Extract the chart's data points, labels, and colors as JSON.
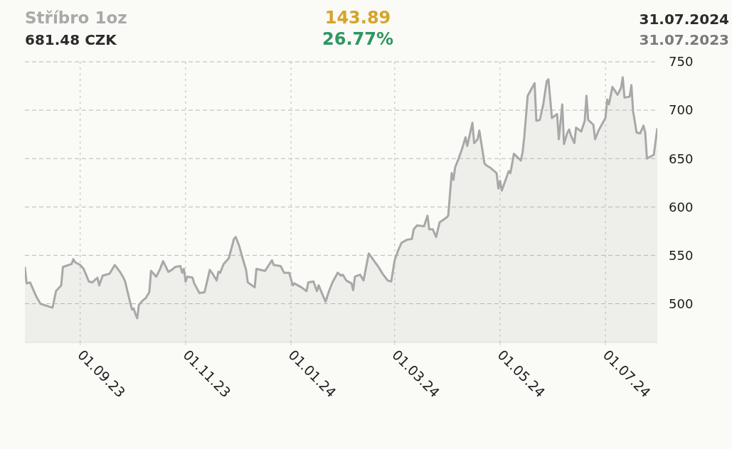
{
  "chart_data": {
    "type": "area",
    "title": "Stříbro 1oz",
    "subtitle": "681.48 CZK",
    "annotations": [
      "143.89",
      "26.77%",
      "31.07.2024",
      "31.07.2023"
    ],
    "x": [
      "2023-07-31",
      "2023-08-01",
      "2023-08-03",
      "2023-08-07",
      "2023-08-09",
      "2023-08-14",
      "2023-08-16",
      "2023-08-18",
      "2023-08-21",
      "2023-08-22",
      "2023-08-27",
      "2023-08-28",
      "2023-08-29",
      "2023-09-01",
      "2023-09-03",
      "2023-09-06",
      "2023-09-08",
      "2023-09-11",
      "2023-09-12",
      "2023-09-14",
      "2023-09-18",
      "2023-09-21",
      "2023-09-24",
      "2023-09-26",
      "2023-09-27",
      "2023-09-29",
      "2023-10-01",
      "2023-10-02",
      "2023-10-03",
      "2023-10-04",
      "2023-10-05",
      "2023-10-07",
      "2023-10-09",
      "2023-10-11",
      "2023-10-12",
      "2023-10-15",
      "2023-10-17",
      "2023-10-19",
      "2023-10-22",
      "2023-10-24",
      "2023-10-26",
      "2023-10-29",
      "2023-10-30",
      "2023-10-31",
      "2023-11-01",
      "2023-11-02",
      "2023-11-05",
      "2023-11-06",
      "2023-11-09",
      "2023-11-12",
      "2023-11-15",
      "2023-11-17",
      "2023-11-19",
      "2023-11-20",
      "2023-11-21",
      "2023-11-23",
      "2023-11-26",
      "2023-11-29",
      "2023-11-30",
      "2023-12-02",
      "2023-12-04",
      "2023-12-06",
      "2023-12-07",
      "2023-12-11",
      "2023-12-12",
      "2023-12-17",
      "2023-12-21",
      "2023-12-22",
      "2023-12-26",
      "2023-12-28",
      "2023-12-31",
      "2024-01-02",
      "2024-01-03",
      "2024-01-07",
      "2024-01-10",
      "2024-01-11",
      "2024-01-14",
      "2024-01-16",
      "2024-01-17",
      "2024-01-21",
      "2024-01-23",
      "2024-01-25",
      "2024-01-28",
      "2024-01-30",
      "2024-01-31",
      "2024-02-02",
      "2024-02-05",
      "2024-02-06",
      "2024-02-07",
      "2024-02-10",
      "2024-02-12",
      "2024-02-15",
      "2024-02-21",
      "2024-02-23",
      "2024-02-26",
      "2024-02-28",
      "2024-03-01",
      "2024-03-03",
      "2024-03-05",
      "2024-03-08",
      "2024-03-11",
      "2024-03-12",
      "2024-03-14",
      "2024-03-18",
      "2024-03-20",
      "2024-03-21",
      "2024-03-23",
      "2024-03-25",
      "2024-03-27",
      "2024-03-31",
      "2024-04-01",
      "2024-04-03",
      "2024-04-04",
      "2024-04-05",
      "2024-04-07",
      "2024-04-09",
      "2024-04-11",
      "2024-04-12",
      "2024-04-15",
      "2024-04-16",
      "2024-04-18",
      "2024-04-19",
      "2024-04-22",
      "2024-04-23",
      "2024-04-25",
      "2024-04-29",
      "2024-04-30",
      "2024-05-01",
      "2024-05-02",
      "2024-05-06",
      "2024-05-07",
      "2024-05-09",
      "2024-05-13",
      "2024-05-14",
      "2024-05-15",
      "2024-05-17",
      "2024-05-21",
      "2024-05-22",
      "2024-05-24",
      "2024-05-26",
      "2024-05-28",
      "2024-05-29",
      "2024-05-31",
      "2024-06-03",
      "2024-06-04",
      "2024-06-06",
      "2024-06-07",
      "2024-06-09",
      "2024-06-10",
      "2024-06-11",
      "2024-06-13",
      "2024-06-14",
      "2024-06-17",
      "2024-06-19",
      "2024-06-20",
      "2024-06-21",
      "2024-06-24",
      "2024-06-25",
      "2024-06-27",
      "2024-07-01",
      "2024-07-02",
      "2024-07-03",
      "2024-07-05",
      "2024-07-08",
      "2024-07-10",
      "2024-07-11",
      "2024-07-12",
      "2024-07-15",
      "2024-07-16",
      "2024-07-17",
      "2024-07-19",
      "2024-07-21",
      "2024-07-23",
      "2024-07-24",
      "2024-07-25",
      "2024-07-29",
      "2024-07-31"
    ],
    "series": [
      {
        "color": "#a8a8a8",
        "values": [
          538,
          521,
          522,
          506,
          500,
          497,
          496,
          513,
          519,
          538,
          541,
          546,
          543,
          540,
          536,
          523,
          522,
          527,
          519,
          529,
          531,
          540,
          533,
          527,
          523,
          508,
          494,
          495,
          489,
          485,
          499,
          503,
          506,
          512,
          534,
          528,
          535,
          544,
          533,
          535,
          538,
          539,
          532,
          536,
          523,
          528,
          527,
          521,
          511,
          512,
          535,
          530,
          524,
          533,
          532,
          541,
          547,
          567,
          569,
          560,
          547,
          535,
          522,
          517,
          536,
          534,
          545,
          540,
          539,
          532,
          532,
          519,
          521,
          517,
          513,
          522,
          523,
          513,
          519,
          502,
          513,
          522,
          532,
          529,
          530,
          524,
          521,
          514,
          528,
          530,
          524,
          552,
          537,
          531,
          524,
          523,
          545,
          555,
          563,
          566,
          567,
          577,
          581,
          580,
          591,
          577,
          577,
          569,
          584,
          589,
          591,
          635,
          628,
          641,
          650,
          660,
          672,
          663,
          687,
          666,
          670,
          679,
          645,
          643,
          641,
          635,
          619,
          627,
          617,
          637,
          635,
          655,
          648,
          656,
          672,
          715,
          728,
          689,
          690,
          706,
          730,
          732,
          692,
          696,
          670,
          706,
          665,
          677,
          680,
          674,
          666,
          682,
          678,
          689,
          715,
          690,
          685,
          670,
          679,
          692,
          711,
          706,
          724,
          716,
          723,
          734,
          713,
          714,
          726,
          699,
          677,
          676,
          684,
          677,
          650,
          654,
          681.48
        ]
      }
    ],
    "xlim": [
      "2023-07-31",
      "2024-07-31"
    ],
    "xticks": [
      {
        "value": "2023-09-01",
        "label": "01.09.23"
      },
      {
        "value": "2023-11-01",
        "label": "01.11.23"
      },
      {
        "value": "2024-01-01",
        "label": "01.01.24"
      },
      {
        "value": "2024-03-01",
        "label": "01.03.24"
      },
      {
        "value": "2024-05-01",
        "label": "01.05.24"
      },
      {
        "value": "2024-07-01",
        "label": "01.07.24"
      }
    ],
    "ylim": [
      460,
      750
    ],
    "yticks": [
      500,
      550,
      600,
      650,
      700,
      750
    ],
    "grid": true
  }
}
